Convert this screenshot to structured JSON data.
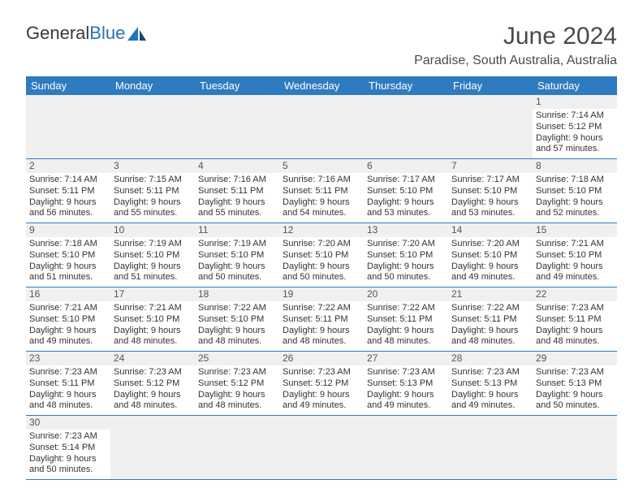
{
  "logo": {
    "text_general": "General",
    "text_blue": "Blue"
  },
  "title": "June 2024",
  "location": "Paradise, South Australia, Australia",
  "colors": {
    "header_bg": "#2f7bc0",
    "header_text": "#ffffff",
    "cell_divider": "#2f7bc0",
    "daynum_bg": "#f0f0f0",
    "text": "#333333",
    "logo_blue": "#2573b8"
  },
  "day_headers": [
    "Sunday",
    "Monday",
    "Tuesday",
    "Wednesday",
    "Thursday",
    "Friday",
    "Saturday"
  ],
  "weeks": [
    [
      null,
      null,
      null,
      null,
      null,
      null,
      {
        "n": "1",
        "sunrise": "Sunrise: 7:14 AM",
        "sunset": "Sunset: 5:12 PM",
        "daylight": "Daylight: 9 hours and 57 minutes."
      }
    ],
    [
      {
        "n": "2",
        "sunrise": "Sunrise: 7:14 AM",
        "sunset": "Sunset: 5:11 PM",
        "daylight": "Daylight: 9 hours and 56 minutes."
      },
      {
        "n": "3",
        "sunrise": "Sunrise: 7:15 AM",
        "sunset": "Sunset: 5:11 PM",
        "daylight": "Daylight: 9 hours and 55 minutes."
      },
      {
        "n": "4",
        "sunrise": "Sunrise: 7:16 AM",
        "sunset": "Sunset: 5:11 PM",
        "daylight": "Daylight: 9 hours and 55 minutes."
      },
      {
        "n": "5",
        "sunrise": "Sunrise: 7:16 AM",
        "sunset": "Sunset: 5:11 PM",
        "daylight": "Daylight: 9 hours and 54 minutes."
      },
      {
        "n": "6",
        "sunrise": "Sunrise: 7:17 AM",
        "sunset": "Sunset: 5:10 PM",
        "daylight": "Daylight: 9 hours and 53 minutes."
      },
      {
        "n": "7",
        "sunrise": "Sunrise: 7:17 AM",
        "sunset": "Sunset: 5:10 PM",
        "daylight": "Daylight: 9 hours and 53 minutes."
      },
      {
        "n": "8",
        "sunrise": "Sunrise: 7:18 AM",
        "sunset": "Sunset: 5:10 PM",
        "daylight": "Daylight: 9 hours and 52 minutes."
      }
    ],
    [
      {
        "n": "9",
        "sunrise": "Sunrise: 7:18 AM",
        "sunset": "Sunset: 5:10 PM",
        "daylight": "Daylight: 9 hours and 51 minutes."
      },
      {
        "n": "10",
        "sunrise": "Sunrise: 7:19 AM",
        "sunset": "Sunset: 5:10 PM",
        "daylight": "Daylight: 9 hours and 51 minutes."
      },
      {
        "n": "11",
        "sunrise": "Sunrise: 7:19 AM",
        "sunset": "Sunset: 5:10 PM",
        "daylight": "Daylight: 9 hours and 50 minutes."
      },
      {
        "n": "12",
        "sunrise": "Sunrise: 7:20 AM",
        "sunset": "Sunset: 5:10 PM",
        "daylight": "Daylight: 9 hours and 50 minutes."
      },
      {
        "n": "13",
        "sunrise": "Sunrise: 7:20 AM",
        "sunset": "Sunset: 5:10 PM",
        "daylight": "Daylight: 9 hours and 50 minutes."
      },
      {
        "n": "14",
        "sunrise": "Sunrise: 7:20 AM",
        "sunset": "Sunset: 5:10 PM",
        "daylight": "Daylight: 9 hours and 49 minutes."
      },
      {
        "n": "15",
        "sunrise": "Sunrise: 7:21 AM",
        "sunset": "Sunset: 5:10 PM",
        "daylight": "Daylight: 9 hours and 49 minutes."
      }
    ],
    [
      {
        "n": "16",
        "sunrise": "Sunrise: 7:21 AM",
        "sunset": "Sunset: 5:10 PM",
        "daylight": "Daylight: 9 hours and 49 minutes."
      },
      {
        "n": "17",
        "sunrise": "Sunrise: 7:21 AM",
        "sunset": "Sunset: 5:10 PM",
        "daylight": "Daylight: 9 hours and 48 minutes."
      },
      {
        "n": "18",
        "sunrise": "Sunrise: 7:22 AM",
        "sunset": "Sunset: 5:10 PM",
        "daylight": "Daylight: 9 hours and 48 minutes."
      },
      {
        "n": "19",
        "sunrise": "Sunrise: 7:22 AM",
        "sunset": "Sunset: 5:11 PM",
        "daylight": "Daylight: 9 hours and 48 minutes."
      },
      {
        "n": "20",
        "sunrise": "Sunrise: 7:22 AM",
        "sunset": "Sunset: 5:11 PM",
        "daylight": "Daylight: 9 hours and 48 minutes."
      },
      {
        "n": "21",
        "sunrise": "Sunrise: 7:22 AM",
        "sunset": "Sunset: 5:11 PM",
        "daylight": "Daylight: 9 hours and 48 minutes."
      },
      {
        "n": "22",
        "sunrise": "Sunrise: 7:23 AM",
        "sunset": "Sunset: 5:11 PM",
        "daylight": "Daylight: 9 hours and 48 minutes."
      }
    ],
    [
      {
        "n": "23",
        "sunrise": "Sunrise: 7:23 AM",
        "sunset": "Sunset: 5:11 PM",
        "daylight": "Daylight: 9 hours and 48 minutes."
      },
      {
        "n": "24",
        "sunrise": "Sunrise: 7:23 AM",
        "sunset": "Sunset: 5:12 PM",
        "daylight": "Daylight: 9 hours and 48 minutes."
      },
      {
        "n": "25",
        "sunrise": "Sunrise: 7:23 AM",
        "sunset": "Sunset: 5:12 PM",
        "daylight": "Daylight: 9 hours and 48 minutes."
      },
      {
        "n": "26",
        "sunrise": "Sunrise: 7:23 AM",
        "sunset": "Sunset: 5:12 PM",
        "daylight": "Daylight: 9 hours and 49 minutes."
      },
      {
        "n": "27",
        "sunrise": "Sunrise: 7:23 AM",
        "sunset": "Sunset: 5:13 PM",
        "daylight": "Daylight: 9 hours and 49 minutes."
      },
      {
        "n": "28",
        "sunrise": "Sunrise: 7:23 AM",
        "sunset": "Sunset: 5:13 PM",
        "daylight": "Daylight: 9 hours and 49 minutes."
      },
      {
        "n": "29",
        "sunrise": "Sunrise: 7:23 AM",
        "sunset": "Sunset: 5:13 PM",
        "daylight": "Daylight: 9 hours and 50 minutes."
      }
    ],
    [
      {
        "n": "30",
        "sunrise": "Sunrise: 7:23 AM",
        "sunset": "Sunset: 5:14 PM",
        "daylight": "Daylight: 9 hours and 50 minutes."
      },
      null,
      null,
      null,
      null,
      null,
      null
    ]
  ]
}
